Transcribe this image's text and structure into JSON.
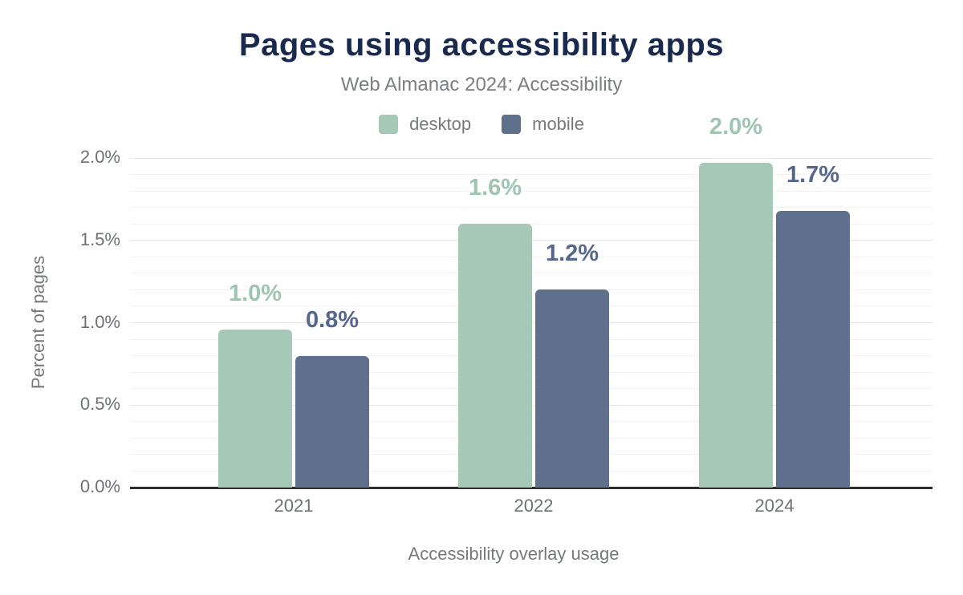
{
  "title": "Pages using accessibility apps",
  "subtitle": "Web Almanac 2024: Accessibility",
  "colors": {
    "title": "#1a2a4e",
    "muted_text": "#75787c",
    "tick_text": "#6d7175",
    "axis_line": "#2d2d2d",
    "desktop": "#a6c9b7",
    "mobile": "#5f708d"
  },
  "chart_data": {
    "type": "bar",
    "title": "Pages using accessibility apps",
    "subtitle": "Web Almanac 2024: Accessibility",
    "categories": [
      "2021",
      "2022",
      "2024"
    ],
    "series": [
      {
        "name": "desktop",
        "color": "#a6c9b7",
        "label_color": "#9ec5b1",
        "values": [
          0.96,
          1.6,
          1.97
        ],
        "value_labels": [
          "1.0%",
          "1.6%",
          "2.0%"
        ]
      },
      {
        "name": "mobile",
        "color": "#5f708d",
        "label_color": "#55678c",
        "values": [
          0.8,
          1.2,
          1.68
        ],
        "value_labels": [
          "0.8%",
          "1.2%",
          "1.7%"
        ]
      }
    ],
    "xlabel": "Accessibility overlay usage",
    "ylabel": "Percent of pages",
    "ylim": [
      0,
      2
    ],
    "yticks": [
      {
        "value": 0,
        "label": "0.0%"
      },
      {
        "value": 0.5,
        "label": "0.5%"
      },
      {
        "value": 1.0,
        "label": "1.0%"
      },
      {
        "value": 1.5,
        "label": "1.5%"
      },
      {
        "value": 2.0,
        "label": "2.0%"
      }
    ],
    "grid": {
      "orientation": "horizontal",
      "minor_step": 0.1,
      "major_step": 0.5
    },
    "legend_position": "top"
  }
}
